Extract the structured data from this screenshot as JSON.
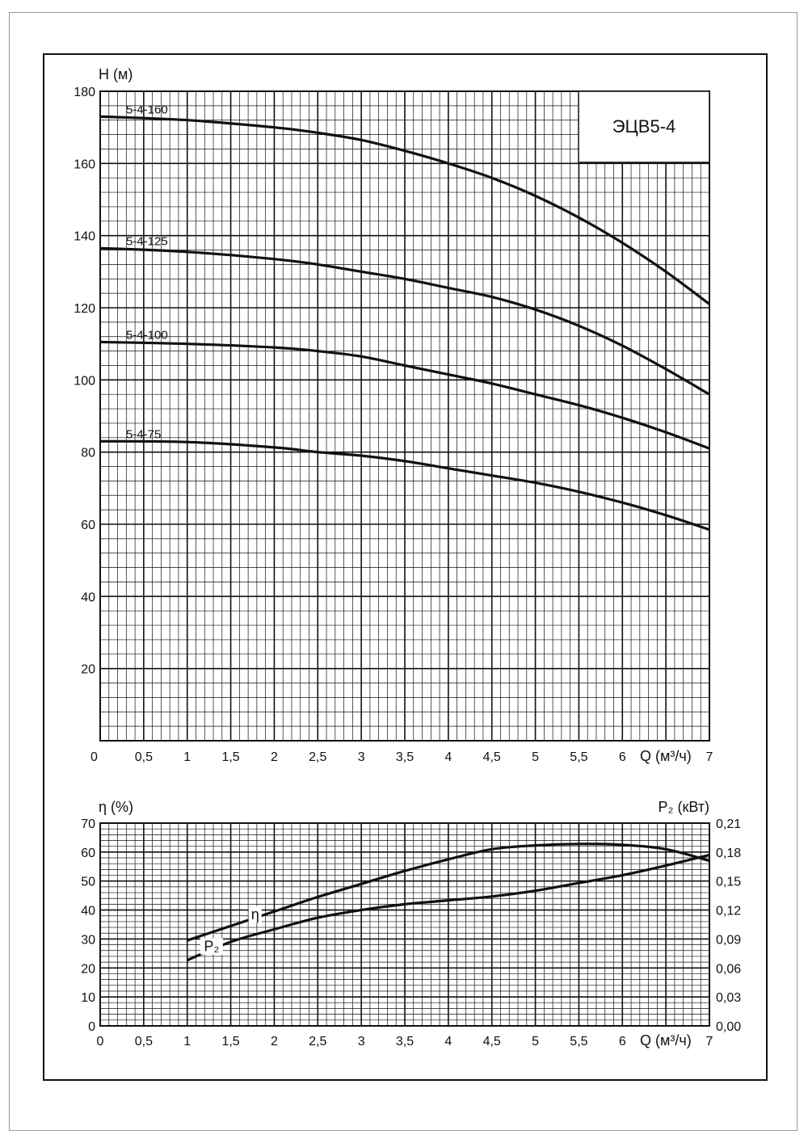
{
  "chart_data": [
    {
      "type": "line",
      "title": "ЭЦВ5-4",
      "xlabel": "Q (м³/ч)",
      "ylabel": "H (м)",
      "xlim": [
        0,
        7
      ],
      "ylim": [
        0,
        180
      ],
      "x_ticks": [
        "0",
        "0,5",
        "1",
        "1,5",
        "2",
        "2,5",
        "3",
        "3,5",
        "4",
        "4,5",
        "5",
        "5,5",
        "6",
        "7"
      ],
      "y_ticks": [
        "20",
        "40",
        "60",
        "80",
        "100",
        "120",
        "140",
        "160",
        "180"
      ],
      "grid": true,
      "series": [
        {
          "name": "5-4-160",
          "x": [
            0,
            1,
            2,
            2.5,
            3,
            3.5,
            4,
            4.5,
            5,
            5.5,
            6,
            6.5,
            7
          ],
          "values": [
            173,
            172,
            170,
            168.5,
            166.5,
            163.5,
            160,
            156,
            151,
            145,
            138,
            130,
            121
          ]
        },
        {
          "name": "5-4-125",
          "x": [
            0,
            1,
            2,
            2.5,
            3,
            3.5,
            4,
            4.5,
            5,
            5.5,
            6,
            6.5,
            7
          ],
          "values": [
            136.5,
            135.5,
            133.5,
            132,
            130,
            128,
            125.5,
            123,
            119.5,
            115,
            109.5,
            103,
            96
          ]
        },
        {
          "name": "5-4-100",
          "x": [
            0,
            1,
            2,
            2.5,
            3,
            3.5,
            4,
            4.5,
            5,
            5.5,
            6,
            6.5,
            7
          ],
          "values": [
            110.5,
            110,
            109,
            108,
            106.5,
            104,
            101.5,
            99,
            96,
            93,
            89.5,
            85.5,
            81
          ]
        },
        {
          "name": "5-4-75",
          "x": [
            0,
            1,
            2,
            2.5,
            3,
            3.5,
            4,
            4.5,
            5,
            5.5,
            6,
            6.5,
            7
          ],
          "values": [
            83,
            82.8,
            81.3,
            80,
            79,
            77.5,
            75.5,
            73.5,
            71.5,
            69,
            66,
            62.5,
            58.5
          ]
        }
      ]
    },
    {
      "type": "line",
      "xlabel": "Q (м³/ч)",
      "ylabel_left": "η (%)",
      "ylabel_right": "P₂ (кВт)",
      "xlim": [
        0,
        7
      ],
      "ylim_left": [
        0,
        70
      ],
      "ylim_right": [
        0,
        0.21
      ],
      "x_ticks": [
        "0",
        "0,5",
        "1",
        "1,5",
        "2",
        "2,5",
        "3",
        "3,5",
        "4",
        "4,5",
        "5",
        "5,5",
        "6",
        "7"
      ],
      "y_ticks_left": [
        "0",
        "10",
        "20",
        "30",
        "40",
        "50",
        "60",
        "70"
      ],
      "y_ticks_right": [
        "0,00",
        "0,03",
        "0,06",
        "0,09",
        "0,12",
        "0,15",
        "0,18",
        "0,21"
      ],
      "grid": true,
      "series": [
        {
          "name": "η",
          "axis": "left",
          "x": [
            1,
            1.5,
            2,
            2.5,
            3,
            3.5,
            4,
            4.5,
            5,
            5.5,
            6,
            6.5,
            7
          ],
          "values": [
            29.5,
            34.5,
            39.5,
            44.5,
            49,
            53.5,
            57.5,
            61,
            62.3,
            62.8,
            62.5,
            61,
            57
          ]
        },
        {
          "name": "P₂",
          "axis": "right",
          "x": [
            1,
            1.5,
            2,
            2.5,
            3,
            3.5,
            4,
            4.5,
            5,
            5.5,
            6,
            6.5,
            7
          ],
          "values": [
            0.068,
            0.087,
            0.1,
            0.112,
            0.12,
            0.126,
            0.13,
            0.134,
            0.14,
            0.148,
            0.156,
            0.166,
            0.177
          ]
        }
      ]
    }
  ]
}
